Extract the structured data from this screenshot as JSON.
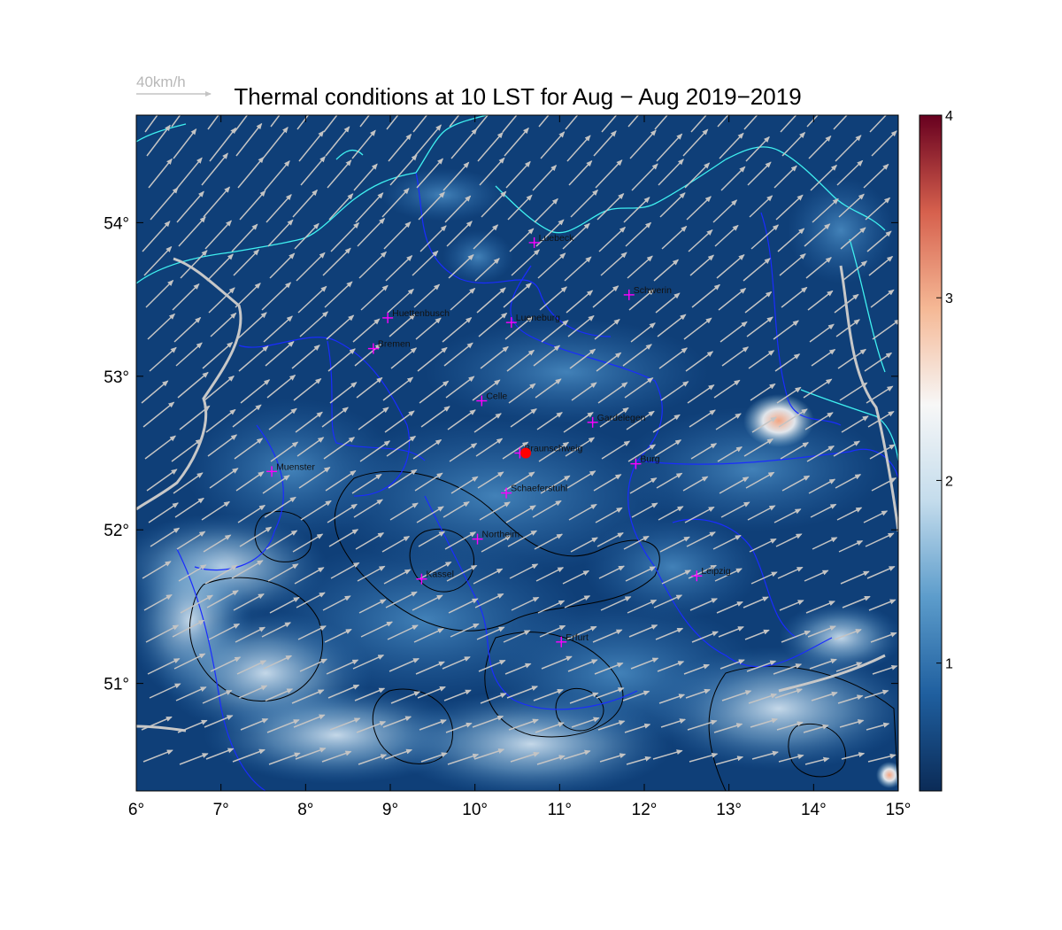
{
  "title": "Thermal conditions at 10 LST for Aug − Aug  2019−2019",
  "reference_vector": {
    "label": "40km/h",
    "color": "#c0c0c0"
  },
  "map_extent": {
    "lon": [
      6,
      15
    ],
    "lat": [
      50.3,
      54.7
    ]
  },
  "axes": {
    "x_ticks": [
      "6°",
      "7°",
      "8°",
      "9°",
      "10°",
      "11°",
      "12°",
      "13°",
      "14°",
      "15°"
    ],
    "x_values": [
      6,
      7,
      8,
      9,
      10,
      11,
      12,
      13,
      14,
      15
    ],
    "y_ticks": [
      "51°",
      "52°",
      "53°",
      "54°"
    ],
    "y_values": [
      51,
      52,
      53,
      54
    ]
  },
  "colorbar": {
    "min": 0.3,
    "max": 4,
    "ticks": [
      "1",
      "2",
      "3",
      "4"
    ],
    "tick_values": [
      1,
      2,
      3,
      4
    ],
    "colors": [
      "#0b2b57",
      "#1f5f9f",
      "#5c9ccb",
      "#c4dcec",
      "#f7f7f7",
      "#f5b895",
      "#d6604d",
      "#67001f"
    ]
  },
  "colors": {
    "field_base": "#0f3f78",
    "state_borders": "#1a2cff",
    "coastline": "#3ff0f0",
    "rivers": "#c8c8c8",
    "contours": "#000000",
    "city_marker": "#ff00ff",
    "site_marker": "#ff0000"
  },
  "cities": [
    {
      "name": "Luebeck",
      "lon": 10.7,
      "lat": 53.87
    },
    {
      "name": "Schwerin",
      "lon": 11.82,
      "lat": 53.53
    },
    {
      "name": "Huettenbusch",
      "lon": 8.97,
      "lat": 53.38
    },
    {
      "name": "Lueneburg",
      "lon": 10.43,
      "lat": 53.35
    },
    {
      "name": "Bremen",
      "lon": 8.8,
      "lat": 53.18
    },
    {
      "name": "Celle",
      "lon": 10.08,
      "lat": 52.84
    },
    {
      "name": "Gardelegen",
      "lon": 11.39,
      "lat": 52.7
    },
    {
      "name": "Braunschweig",
      "lon": 10.53,
      "lat": 52.5
    },
    {
      "name": "Burg",
      "lon": 11.9,
      "lat": 52.43
    },
    {
      "name": "Muenster",
      "lon": 7.6,
      "lat": 52.38
    },
    {
      "name": "Schaeferstuhl",
      "lon": 10.37,
      "lat": 52.24
    },
    {
      "name": "Northeim",
      "lon": 10.03,
      "lat": 51.94
    },
    {
      "name": "Kassel",
      "lon": 9.37,
      "lat": 51.68
    },
    {
      "name": "Leipzig",
      "lon": 12.62,
      "lat": 51.7
    },
    {
      "name": "Erfurt",
      "lon": 11.02,
      "lat": 51.27
    }
  ],
  "site": {
    "name": "Braunschweig",
    "lon": 10.6,
    "lat": 52.5
  }
}
